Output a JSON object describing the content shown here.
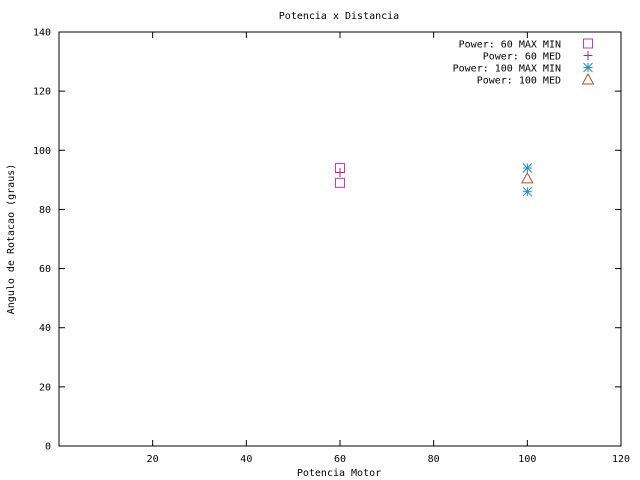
{
  "chart_data": {
    "type": "scatter",
    "title": "Potencia x Distancia",
    "xlabel": "Potencia Motor",
    "ylabel": "Angulo de Rotacao (graus)",
    "xlim": [
      0,
      120
    ],
    "ylim": [
      0,
      140
    ],
    "x_ticks": [
      20,
      40,
      60,
      80,
      100,
      120
    ],
    "y_ticks": [
      0,
      20,
      40,
      60,
      80,
      100,
      120,
      140
    ],
    "grid": false,
    "legend_position": "top-right",
    "series": [
      {
        "name": "Power: 60 MAX MIN",
        "marker": "square",
        "color": "#cc33cc",
        "points": [
          [
            60,
            94
          ],
          [
            60,
            89
          ]
        ]
      },
      {
        "name": "Power: 60 MED",
        "marker": "plus",
        "color": "#bb2266",
        "points": [
          [
            60,
            92.5
          ]
        ]
      },
      {
        "name": "Power: 100 MAX MIN",
        "marker": "star",
        "color": "#1a8fd6",
        "points": [
          [
            100,
            94
          ],
          [
            100,
            86
          ]
        ]
      },
      {
        "name": "Power: 100 MED",
        "marker": "triangle",
        "color": "#b84d1a",
        "points": [
          [
            100,
            90.5
          ]
        ]
      }
    ]
  }
}
